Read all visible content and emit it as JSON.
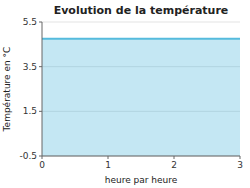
{
  "chart_data": {
    "type": "area",
    "title": "Evolution de la température",
    "xlabel": "heure par heure",
    "ylabel": "Température en °C",
    "x": [
      0,
      3
    ],
    "values": [
      4.75,
      4.75
    ],
    "color": "#55bbdd",
    "xlim": [
      0,
      3
    ],
    "ylim": [
      -0.5,
      5.5
    ],
    "xticks": [
      0,
      1,
      2,
      3
    ],
    "yticks": [
      -0.5,
      1.5,
      3.5,
      5.5
    ],
    "grid": true
  }
}
